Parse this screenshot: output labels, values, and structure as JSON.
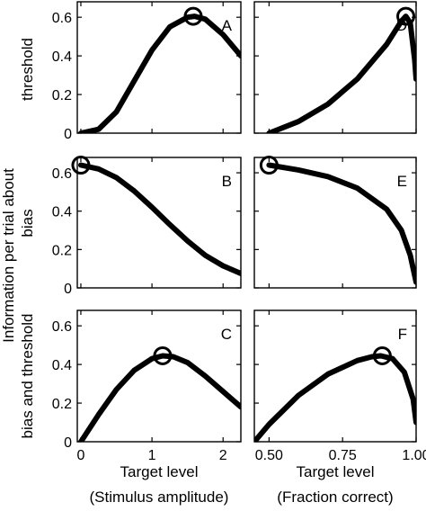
{
  "figure": {
    "ylabel_lines": [
      "Information per trial about",
      "threshold",
      "bias",
      "bias and threshold"
    ]
  },
  "chart_data": [
    {
      "id": "A",
      "type": "line",
      "panel_label": "A",
      "x": [
        0,
        0.25,
        0.5,
        0.75,
        1.0,
        1.25,
        1.5,
        1.6,
        1.75,
        2.0,
        2.25
      ],
      "y": [
        0,
        0.02,
        0.11,
        0.27,
        0.43,
        0.55,
        0.6,
        0.605,
        0.59,
        0.51,
        0.4
      ],
      "marker": {
        "x": 1.58,
        "y": 0.605
      },
      "xlim": [
        -0.05,
        2.25
      ],
      "ylim": [
        0,
        0.68
      ],
      "yticks": [
        0,
        0.2,
        0.4,
        0.6
      ],
      "yticklabels": [
        "0",
        "0.2",
        "0.4",
        "0.6"
      ],
      "xticks": [
        0,
        1,
        2
      ],
      "xticklabels": [],
      "ylabel": "threshold"
    },
    {
      "id": "D",
      "type": "line",
      "panel_label": "D",
      "x": [
        0.5,
        0.6,
        0.7,
        0.8,
        0.9,
        0.95,
        0.965,
        0.98,
        0.995,
        1.0
      ],
      "y": [
        0,
        0.06,
        0.15,
        0.28,
        0.46,
        0.58,
        0.605,
        0.57,
        0.38,
        0.28
      ],
      "marker": {
        "x": 0.965,
        "y": 0.605
      },
      "xlim": [
        0.45,
        1.0
      ],
      "ylim": [
        0,
        0.68
      ],
      "yticks": [
        0,
        0.2,
        0.4,
        0.6
      ],
      "yticklabels": [],
      "xticks": [
        0.5,
        0.75,
        1.0
      ],
      "xticklabels": [],
      "ylabel": ""
    },
    {
      "id": "B",
      "type": "line",
      "panel_label": "B",
      "x": [
        0,
        0.25,
        0.5,
        0.75,
        1.0,
        1.25,
        1.5,
        1.75,
        2.0,
        2.25
      ],
      "y": [
        0.64,
        0.62,
        0.575,
        0.505,
        0.42,
        0.33,
        0.245,
        0.17,
        0.115,
        0.075
      ],
      "marker": {
        "x": 0,
        "y": 0.64
      },
      "xlim": [
        -0.05,
        2.25
      ],
      "ylim": [
        0,
        0.68
      ],
      "yticks": [
        0,
        0.2,
        0.4,
        0.6
      ],
      "yticklabels": [
        "0",
        "0.2",
        "0.4",
        "0.6"
      ],
      "xticks": [
        0,
        1,
        2
      ],
      "xticklabels": [],
      "ylabel": "bias"
    },
    {
      "id": "E",
      "type": "line",
      "panel_label": "E",
      "x": [
        0.5,
        0.6,
        0.7,
        0.8,
        0.9,
        0.95,
        0.98,
        1.0
      ],
      "y": [
        0.64,
        0.615,
        0.58,
        0.52,
        0.41,
        0.3,
        0.17,
        0.03
      ],
      "marker": {
        "x": 0.5,
        "y": 0.64
      },
      "xlim": [
        0.45,
        1.0
      ],
      "ylim": [
        0,
        0.68
      ],
      "yticks": [
        0,
        0.2,
        0.4,
        0.6
      ],
      "yticklabels": [],
      "xticks": [
        0.5,
        0.75,
        1.0
      ],
      "xticklabels": [],
      "ylabel": ""
    },
    {
      "id": "C",
      "type": "line",
      "panel_label": "C",
      "x": [
        0,
        0.25,
        0.5,
        0.75,
        1.0,
        1.15,
        1.3,
        1.5,
        1.75,
        2.0,
        2.25
      ],
      "y": [
        0,
        0.14,
        0.27,
        0.37,
        0.43,
        0.445,
        0.44,
        0.41,
        0.34,
        0.26,
        0.18
      ],
      "marker": {
        "x": 1.15,
        "y": 0.445
      },
      "xlim": [
        -0.05,
        2.25
      ],
      "ylim": [
        0,
        0.68
      ],
      "yticks": [
        0,
        0.2,
        0.4,
        0.6
      ],
      "yticklabels": [
        "0",
        "0.2",
        "0.4",
        "0.6"
      ],
      "xticks": [
        0,
        1,
        2
      ],
      "xticklabels": [
        "0",
        "1",
        "2"
      ],
      "ylabel": "bias and threshold",
      "xlabel": "Target level",
      "xlabel2": "(Stimulus amplitude)"
    },
    {
      "id": "F",
      "type": "line",
      "panel_label": "F",
      "x": [
        0.45,
        0.5,
        0.6,
        0.7,
        0.8,
        0.85,
        0.88,
        0.92,
        0.96,
        0.99,
        1.0
      ],
      "y": [
        0,
        0.09,
        0.24,
        0.35,
        0.42,
        0.44,
        0.445,
        0.43,
        0.36,
        0.22,
        0.1
      ],
      "marker": {
        "x": 0.885,
        "y": 0.445
      },
      "xlim": [
        0.45,
        1.0
      ],
      "ylim": [
        0,
        0.68
      ],
      "yticks": [
        0,
        0.2,
        0.4,
        0.6
      ],
      "yticklabels": [],
      "xticks": [
        0.5,
        0.75,
        1.0
      ],
      "xticklabels": [
        "0.50",
        "0.75",
        "1.00"
      ],
      "ylabel": "",
      "xlabel": "Target level",
      "xlabel2": "(Fraction correct)"
    }
  ]
}
